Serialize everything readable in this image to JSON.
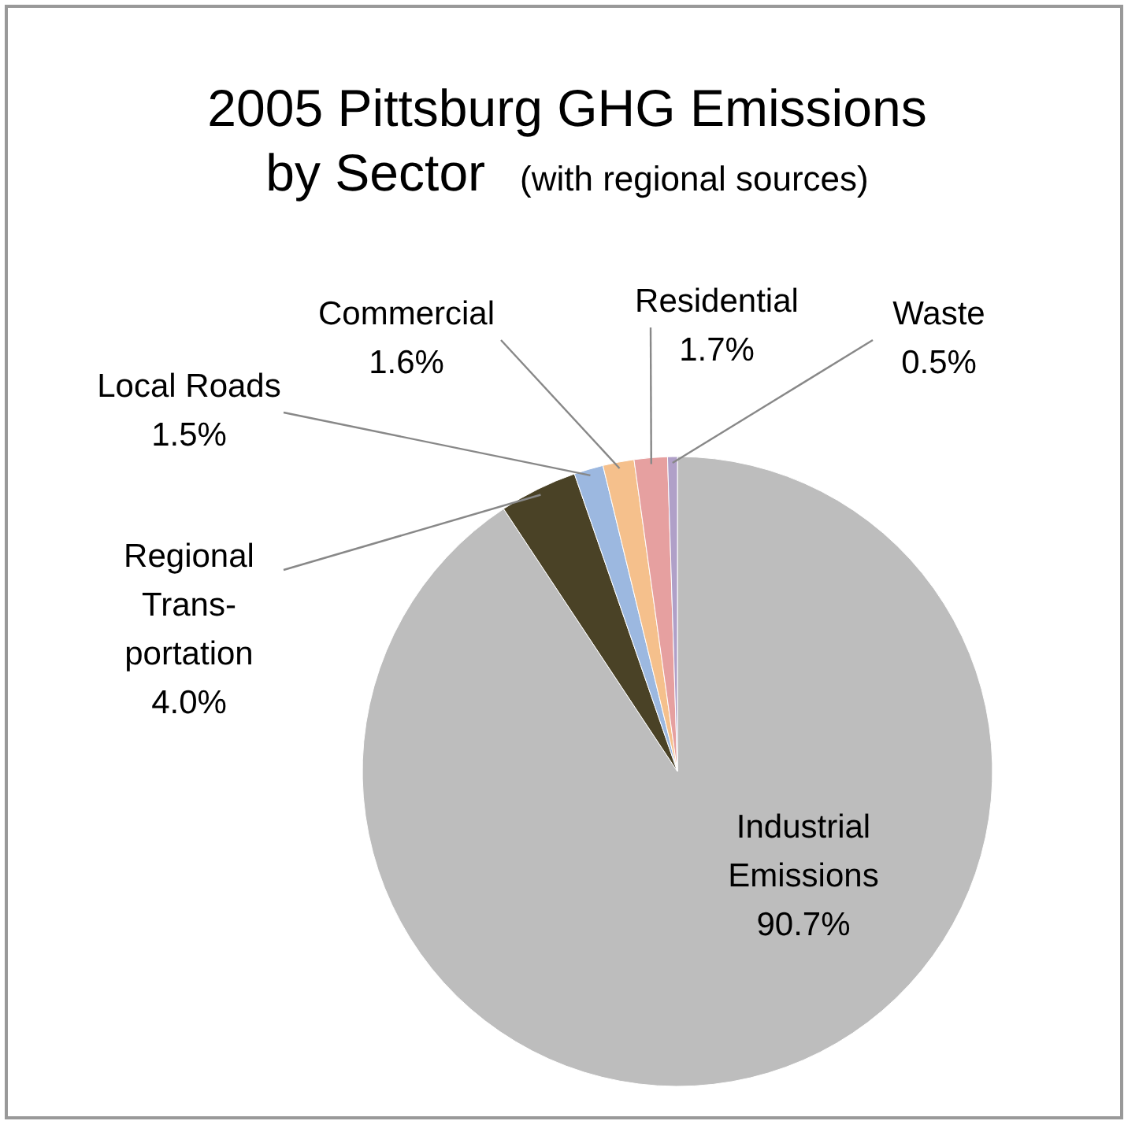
{
  "chart_data": {
    "type": "pie",
    "title": "2005 Pittsburg GHG Emissions by Sector",
    "subtitle": "(with regional sources)",
    "categories": [
      "Industrial Emissions",
      "Regional Trans-portation",
      "Local Roads",
      "Commercial",
      "Residential",
      "Waste"
    ],
    "values": [
      90.7,
      4.0,
      1.5,
      1.6,
      1.7,
      0.5
    ],
    "value_labels": [
      "90.7%",
      "4.0%",
      "1.5%",
      "1.6%",
      "1.7%",
      "0.5%"
    ],
    "colors": [
      "#bdbdbd",
      "#4a4226",
      "#9cb8e0",
      "#f5c08c",
      "#e6a0a0",
      "#b0a0c8"
    ]
  }
}
